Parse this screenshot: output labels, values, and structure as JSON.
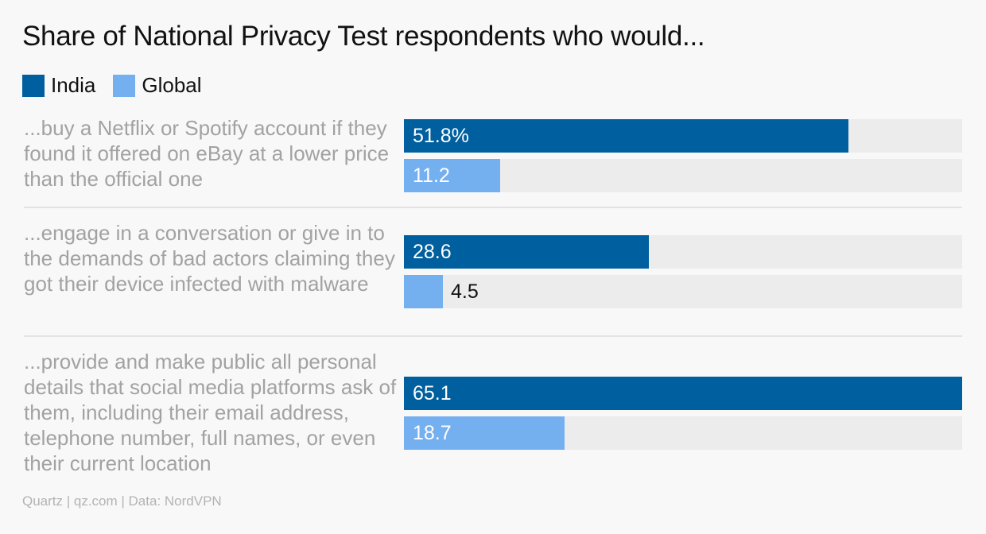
{
  "title": "Share of National Privacy Test respondents who would...",
  "legend": [
    {
      "label": "India",
      "color": "#005f9e"
    },
    {
      "label": "Global",
      "color": "#74aff0"
    }
  ],
  "footer": "Quartz | qz.com | Data: NordVPN",
  "chart_data": {
    "type": "bar",
    "orientation": "horizontal",
    "xlim": [
      0,
      65.1
    ],
    "grid": false,
    "legend_position": "top-left",
    "categories": [
      "...buy a Netflix or Spotify account if they found it offered on eBay at a lower price than the official one",
      "...engage in a conversation or give in to the demands of bad actors claiming they got their device infected with malware",
      "...provide and make public all personal details that social media platforms ask of them, including their email address, telephone number, full names, or even their current location"
    ],
    "series": [
      {
        "name": "India",
        "color": "#005f9e",
        "values": [
          51.8,
          28.6,
          65.1
        ],
        "labels": [
          "51.8%",
          "28.6",
          "65.1"
        ]
      },
      {
        "name": "Global",
        "color": "#74aff0",
        "values": [
          11.2,
          4.5,
          18.7
        ],
        "labels": [
          "11.2",
          "4.5",
          "18.7"
        ]
      }
    ]
  }
}
